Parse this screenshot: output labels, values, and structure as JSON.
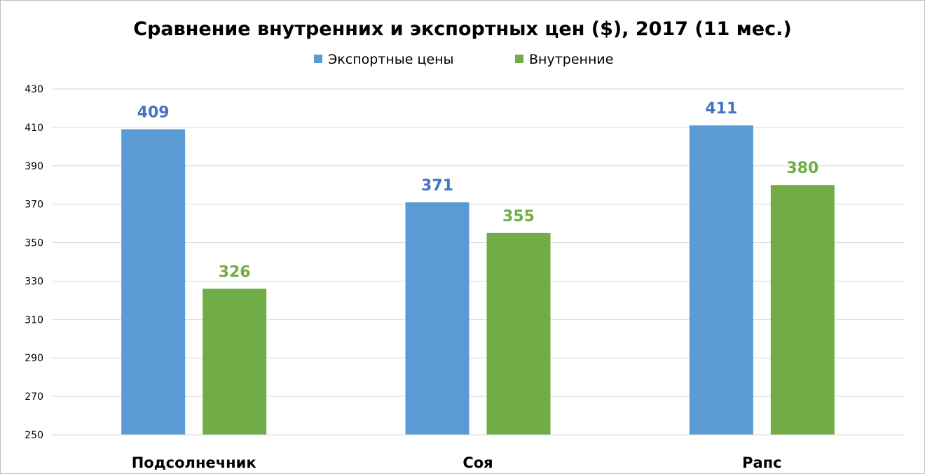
{
  "chart_data": {
    "type": "bar",
    "title": "Сравнение внутренних и экспортных цен ($), 2017 (11 мес.)",
    "categories": [
      "Подсолнечник",
      "Соя",
      "Рапс"
    ],
    "series": [
      {
        "name": "Экспортные цены",
        "values": [
          409,
          371,
          411
        ],
        "color": "#5b9bd5",
        "label_color": "#4472c4"
      },
      {
        "name": "Внутренние",
        "values": [
          326,
          355,
          380
        ],
        "color": "#70ad47",
        "label_color": "#70ad47"
      }
    ],
    "ylim": [
      250,
      430
    ],
    "yticks": [
      250,
      270,
      290,
      310,
      330,
      350,
      370,
      390,
      410,
      430
    ],
    "grid": true,
    "legend_position": "top-center"
  }
}
